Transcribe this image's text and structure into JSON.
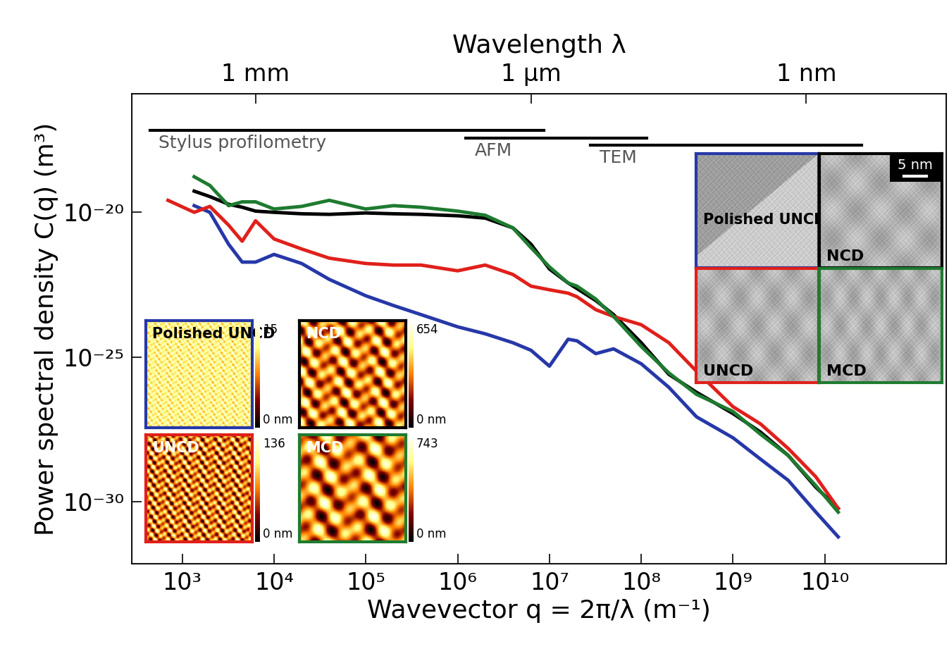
{
  "chart_data": {
    "type": "line",
    "log": true,
    "grid": false,
    "line_style": "solid",
    "xlabel": "Wavevector q = 2π/λ (m⁻¹)",
    "ylabel": "Power spectral density C(q) (m³)",
    "x2label": "Wavelength λ",
    "xlim": [
      282,
      210000000000.0
    ],
    "ylim": [
      7.1e-33,
      1.26e-16
    ],
    "x2lim": [
      0.0223,
      2.99e-11
    ],
    "xticks": [
      {
        "value": 1000.0,
        "label": "10³"
      },
      {
        "value": 10000.0,
        "label": "10⁴"
      },
      {
        "value": 100000.0,
        "label": "10⁵"
      },
      {
        "value": 1000000.0,
        "label": "10⁶"
      },
      {
        "value": 10000000.0,
        "label": "10⁷"
      },
      {
        "value": 100000000.0,
        "label": "10⁸"
      },
      {
        "value": 1000000000.0,
        "label": "10⁹"
      },
      {
        "value": 10000000000.0,
        "label": "10¹⁰"
      }
    ],
    "yticks": [
      {
        "value": 1e-30,
        "label": "10⁻³⁰"
      },
      {
        "value": 1e-25,
        "label": "10⁻²⁵"
      },
      {
        "value": 1e-20,
        "label": "10⁻²⁰"
      }
    ],
    "x2ticks": [
      {
        "value": 0.001,
        "label": "1 mm"
      },
      {
        "value": 1e-06,
        "label": "1 µm"
      },
      {
        "value": 1e-09,
        "label": "1 nm"
      }
    ],
    "x": [
      700,
      1350,
      2000,
      3200,
      4500,
      6300,
      10000.0,
      20000.0,
      40000.0,
      100000.0,
      200000.0,
      400000.0,
      1000000.0,
      2000000.0,
      4000000.0,
      6300000.0,
      10000000.0,
      16000000.0,
      20000000.0,
      32000000.0,
      50000000.0,
      100000000.0,
      200000000.0,
      400000000.0,
      1000000000.0,
      2000000000.0,
      4000000000.0,
      8000000000.0,
      14000000000.0
    ],
    "series": [
      {
        "name": "Polished UNCD",
        "color": "#2638a8",
        "afm_zmax": 15,
        "afm_zmin": {
          "value": 0,
          "label": "0 nm"
        },
        "values": [
          null,
          1.7e-20,
          1e-20,
          7.9e-22,
          1.9e-22,
          1.9e-22,
          3.5e-22,
          1.7e-22,
          4.8e-23,
          1.3e-23,
          6e-24,
          2.9e-24,
          1.1e-24,
          6.3e-25,
          3.1e-25,
          1.7e-25,
          4.8e-26,
          4.1e-25,
          3.6e-25,
          1.3e-25,
          1.9e-25,
          5.8e-26,
          8.9e-27,
          8.5e-28,
          1.6e-28,
          2.9e-29,
          5.4e-30,
          4.3e-31,
          6e-32
        ]
      },
      {
        "name": "NCD",
        "color": "#000000",
        "afm_zmax": 654,
        "afm_zmin": {
          "value": 0,
          "label": "0 nm"
        },
        "values": [
          null,
          5.4e-20,
          3.5e-20,
          1.9e-20,
          1.5e-20,
          1.1e-20,
          1e-20,
          8.9e-21,
          8.5e-21,
          9.5e-21,
          8.9e-21,
          8.5e-21,
          7.6e-21,
          6.3e-21,
          2.9e-21,
          7.9e-22,
          1.1e-22,
          3.6e-23,
          2.3e-23,
          8.9e-24,
          2.9e-24,
          3.1e-25,
          2.5e-26,
          6e-27,
          1.1e-27,
          2.5e-28,
          3.9e-29,
          3.1e-30,
          5.8e-31
        ]
      },
      {
        "name": "UNCD",
        "color": "#e0201b",
        "afm_zmax": 136,
        "afm_zmin": {
          "value": 0,
          "label": "0 nm"
        },
        "values": [
          2.6e-20,
          1e-20,
          1.6e-20,
          3.6e-21,
          1e-21,
          5.1e-21,
          1.2e-21,
          5.4e-22,
          2.6e-22,
          1.7e-22,
          1.5e-22,
          1.5e-22,
          9.5e-23,
          1.5e-22,
          7.1e-23,
          2.8e-23,
          2.1e-23,
          1.6e-23,
          1.2e-23,
          4.3e-24,
          2.5e-24,
          1.3e-24,
          3.1e-25,
          3.2e-26,
          1.9e-27,
          4.8e-28,
          6.8e-29,
          7.1e-30,
          5.8e-31
        ]
      },
      {
        "name": "MCD",
        "color": "#1e7b30",
        "afm_zmax": 743,
        "afm_zmin": {
          "value": 0,
          "label": "0 nm"
        },
        "values": [
          null,
          1.7e-19,
          8.5e-20,
          1.7e-20,
          2.3e-20,
          2.3e-20,
          1.3e-20,
          1.6e-20,
          2.6e-20,
          1.3e-20,
          1.7e-20,
          1.5e-20,
          1.1e-20,
          7.9e-21,
          2.9e-21,
          6e-22,
          1.3e-22,
          3.6e-23,
          2.8e-23,
          1e-23,
          2.5e-24,
          2.3e-25,
          2.8e-26,
          5.1e-27,
          1.3e-27,
          2.1e-28,
          3.9e-29,
          3.5e-30,
          4.3e-31
        ]
      }
    ],
    "ranges": [
      {
        "label": "Stylus profilometry",
        "q": [
          445,
          8700000.0
        ],
        "C": 6.8e-18
      },
      {
        "label": "AFM",
        "q": [
          1230000.0,
          115000000.0
        ],
        "C": 3.6e-18
      },
      {
        "label": "TEM",
        "q": [
          28000000.0,
          25000000000.0
        ],
        "C": 2.1e-18
      }
    ],
    "tem_scale_bar": "5 nm"
  }
}
